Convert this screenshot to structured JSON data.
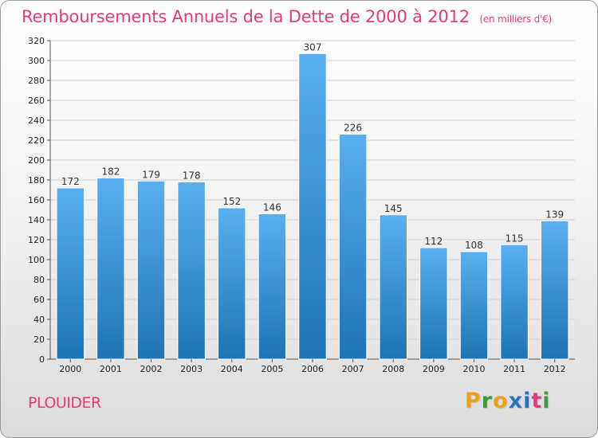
{
  "title": "Remboursements Annuels de la Dette de 2000 à 2012",
  "subtitle": "(en milliers d'€)",
  "commune": "PLOUIDER",
  "logo": {
    "letters": [
      "P",
      "r",
      "o",
      "x",
      "i",
      "t",
      "i"
    ],
    "colors": [
      "#e8a21a",
      "#3c9b3c",
      "#e8a21a",
      "#2a72c7",
      "#2a72c7",
      "#e8397a",
      "#3c9b3c"
    ]
  },
  "colors": {
    "title": "#e8397a",
    "bar_top": "#5aaff0",
    "bar_bottom": "#1e73b4",
    "grid": "#cfcfcf",
    "axis": "#555555"
  },
  "chart_data": {
    "type": "bar",
    "title": "Remboursements Annuels de la Dette de 2000 à 2012",
    "subtitle": "(en milliers d'€)",
    "categories": [
      "2000",
      "2001",
      "2002",
      "2003",
      "2004",
      "2005",
      "2006",
      "2007",
      "2008",
      "2009",
      "2010",
      "2011",
      "2012"
    ],
    "values": [
      172,
      182,
      179,
      178,
      152,
      146,
      307,
      226,
      145,
      112,
      108,
      115,
      139
    ],
    "ylim": [
      0,
      320
    ],
    "yticks": [
      0,
      20,
      40,
      60,
      80,
      100,
      120,
      140,
      160,
      180,
      200,
      220,
      240,
      260,
      280,
      300,
      320
    ],
    "grid": true,
    "legend": "none",
    "xlabel": "",
    "ylabel": ""
  }
}
